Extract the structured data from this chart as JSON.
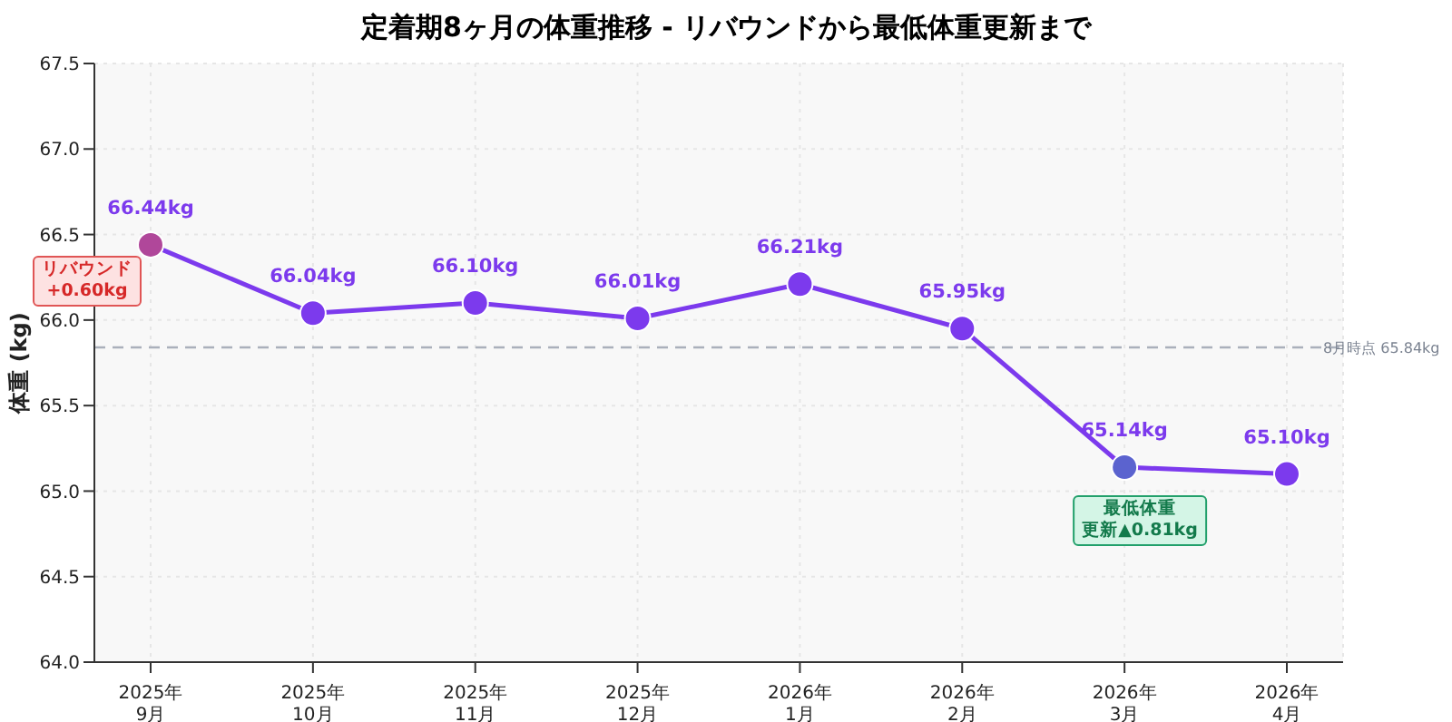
{
  "chart_data": {
    "type": "line",
    "title": "定着期8ヶ月の体重推移 - リバウンドから最低体重更新まで",
    "ylabel": "体重 (kg)",
    "categories": [
      "2025年\n9月",
      "2025年\n10月",
      "2025年\n11月",
      "2025年\n12月",
      "2026年\n1月",
      "2026年\n2月",
      "2026年\n3月",
      "2026年\n4月"
    ],
    "series": [
      {
        "color": "#7c3aed",
        "colors": [
          "#b0479a",
          "#7c3aed",
          "#7c3aed",
          "#7c3aed",
          "#7c3aed",
          "#7c3aed",
          "#5b63cf",
          "#7c3aed"
        ],
        "values": [
          66.44,
          66.04,
          66.1,
          66.01,
          66.21,
          65.95,
          65.14,
          65.1
        ],
        "value_labels": [
          "66.44kg",
          "66.04kg",
          "66.10kg",
          "66.01kg",
          "66.21kg",
          "65.95kg",
          "65.14kg",
          "65.10kg"
        ]
      }
    ],
    "ylim": [
      64.0,
      67.5
    ],
    "yticks": [
      {
        "value": 64,
        "label": "64.0"
      },
      {
        "value": 64.5,
        "label": "64.5"
      },
      {
        "value": 65,
        "label": "65.0"
      },
      {
        "value": 65.5,
        "label": "65.5"
      },
      {
        "value": 66,
        "label": "66.0"
      },
      {
        "value": 66.5,
        "label": "66.5"
      },
      {
        "value": 67,
        "label": "67.0"
      },
      {
        "value": 67.5,
        "label": "67.5"
      }
    ],
    "ref_lines": [
      {
        "axis": "y",
        "value": 65.84,
        "label": "8月時点 65.84kg",
        "color": "#aab0bb",
        "line_style": "dashed"
      }
    ],
    "annotations": [
      "リバウンド",
      "+0.60kg",
      "最低体重",
      "更新▲0.81kg"
    ],
    "grid": true,
    "marker": "circle",
    "line_style": "solid"
  }
}
